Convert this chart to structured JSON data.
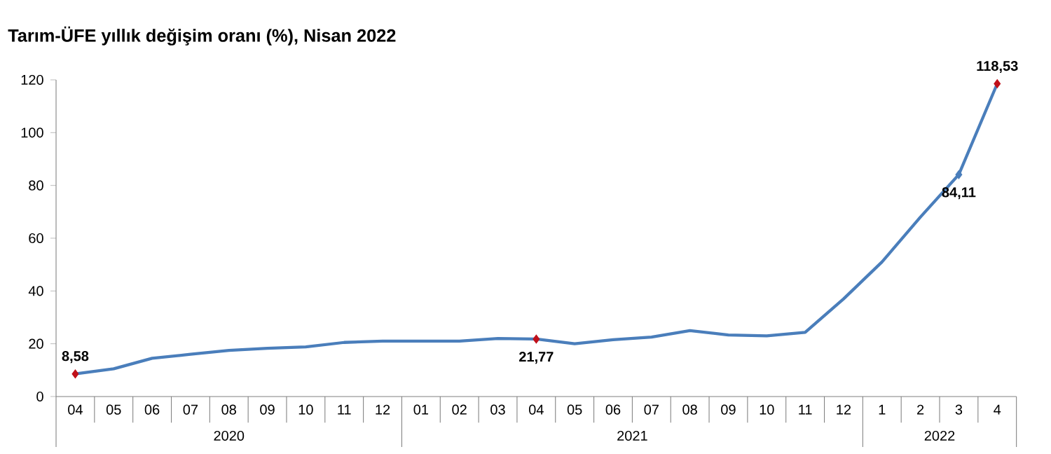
{
  "chart_data": {
    "type": "line",
    "title": "Tarım-ÜFE yıllık değişim oranı (%), Nisan 2022",
    "categories": [
      "04",
      "05",
      "06",
      "07",
      "08",
      "09",
      "10",
      "11",
      "12",
      "01",
      "02",
      "03",
      "04",
      "05",
      "06",
      "07",
      "08",
      "09",
      "10",
      "11",
      "12",
      "1",
      "2",
      "3",
      "4"
    ],
    "values": [
      8.58,
      10.5,
      14.5,
      16,
      17.5,
      18.3,
      18.8,
      20.5,
      21,
      21,
      21,
      22,
      21.77,
      20,
      21.5,
      22.5,
      25,
      23.3,
      23,
      24.3,
      37,
      51,
      68,
      84.11,
      118.53
    ],
    "value_labels": [
      "8,58",
      null,
      null,
      null,
      null,
      null,
      null,
      null,
      null,
      null,
      null,
      null,
      "21,77",
      null,
      null,
      null,
      null,
      null,
      null,
      null,
      null,
      null,
      null,
      "84,11",
      "118,53"
    ],
    "color": "#4a7ebb",
    "colors": [
      "#c0101a",
      "#4a7ebb",
      "#4a7ebb",
      "#4a7ebb",
      "#4a7ebb",
      "#4a7ebb",
      "#4a7ebb",
      "#4a7ebb",
      "#4a7ebb",
      "#4a7ebb",
      "#4a7ebb",
      "#4a7ebb",
      "#c0101a",
      "#4a7ebb",
      "#4a7ebb",
      "#4a7ebb",
      "#4a7ebb",
      "#4a7ebb",
      "#4a7ebb",
      "#4a7ebb",
      "#4a7ebb",
      "#4a7ebb",
      "#4a7ebb",
      "#4a7ebb",
      "#c0101a"
    ],
    "annotations": [
      "2020",
      "2021",
      "2022"
    ],
    "ylim": [
      0,
      120
    ],
    "yticks": [
      0,
      20,
      40,
      60,
      80,
      100,
      120
    ],
    "grid": false
  }
}
